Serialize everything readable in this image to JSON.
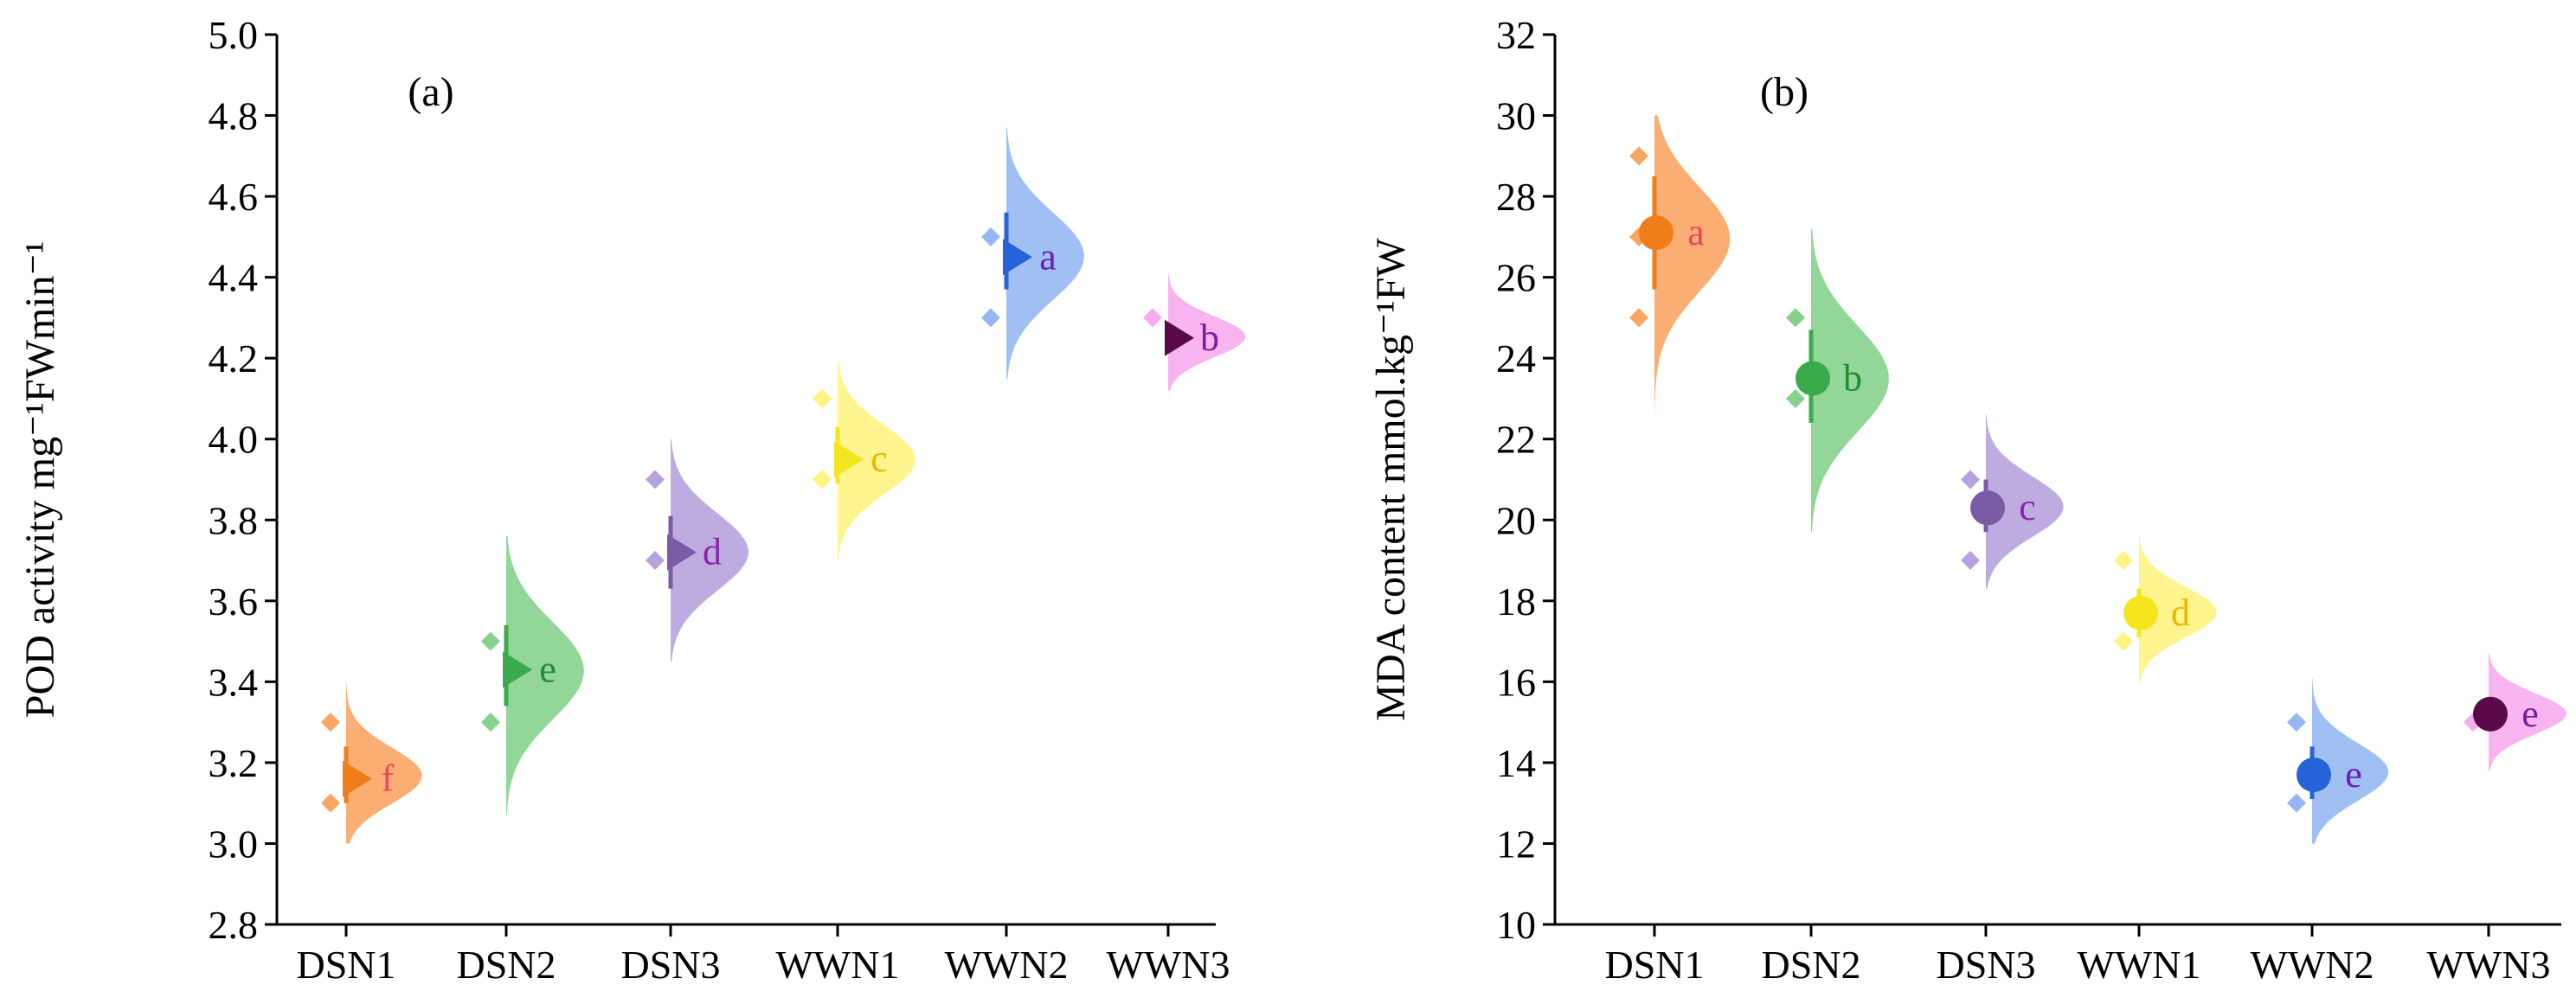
{
  "chart_data": [
    {
      "type": "violin",
      "panel_label": "(a)",
      "ylabel": "POD activity mg⁻¹FWmin⁻¹",
      "xlabel": "",
      "ylim": [
        2.8,
        5.0
      ],
      "yticks": [
        2.8,
        3.0,
        3.2,
        3.4,
        3.6,
        3.8,
        4.0,
        4.2,
        4.4,
        4.6,
        4.8,
        5.0
      ],
      "ytick_labels": [
        "2.8",
        "3.0",
        "3.2",
        "3.4",
        "3.6",
        "3.8",
        "4.0",
        "4.2",
        "4.4",
        "4.6",
        "4.8",
        "5.0"
      ],
      "marker": "triangle-right",
      "categories": [
        "DSN1",
        "DSN2",
        "DSN3",
        "WWN1",
        "WWN2",
        "WWN3"
      ],
      "series": [
        {
          "name": "DSN1",
          "mean": 3.16,
          "error": [
            3.1,
            3.24
          ],
          "observations": [
            3.1,
            3.3
          ],
          "range": [
            3.0,
            3.4
          ],
          "letter": "f",
          "fill": "#f9a05c",
          "marker_color": "#f07c1a",
          "letter_color": "#e8485a"
        },
        {
          "name": "DSN2",
          "mean": 3.43,
          "error": [
            3.34,
            3.54
          ],
          "observations": [
            3.3,
            3.5
          ],
          "range": [
            3.07,
            3.76
          ],
          "letter": "e",
          "fill": "#7fcf86",
          "marker_color": "#3aab4a",
          "letter_color": "#1e8f2e"
        },
        {
          "name": "DSN3",
          "mean": 3.72,
          "error": [
            3.63,
            3.81
          ],
          "observations": [
            3.7,
            3.9
          ],
          "range": [
            3.45,
            4.0
          ],
          "letter": "d",
          "fill": "#b39ddb",
          "marker_color": "#7b5aa6",
          "letter_color": "#8e24aa"
        },
        {
          "name": "WWN1",
          "mean": 3.95,
          "error": [
            3.89,
            4.03
          ],
          "observations": [
            3.9,
            4.1
          ],
          "range": [
            3.7,
            4.19
          ],
          "letter": "c",
          "fill": "#fff27a",
          "marker_color": "#f5e51c",
          "letter_color": "#e8b800"
        },
        {
          "name": "WWN2",
          "mean": 4.45,
          "error": [
            4.37,
            4.56
          ],
          "observations": [
            4.3,
            4.5
          ],
          "range": [
            4.15,
            4.77
          ],
          "letter": "a",
          "fill": "#8fb4f0",
          "marker_color": "#2563d9",
          "letter_color": "#6a1fb8"
        },
        {
          "name": "WWN3",
          "mean": 4.25,
          "error": [
            4.22,
            4.28
          ],
          "observations": [
            4.3
          ],
          "range": [
            4.12,
            4.41
          ],
          "letter": "b",
          "fill": "#f7a6ef",
          "marker_color": "#5a0a4a",
          "letter_color": "#7a1f9e"
        }
      ]
    },
    {
      "type": "violin",
      "panel_label": "(b)",
      "ylabel": "MDA content mmol.kg⁻¹FW",
      "xlabel": "",
      "ylim": [
        10,
        32
      ],
      "yticks": [
        10,
        12,
        14,
        16,
        18,
        20,
        22,
        24,
        26,
        28,
        30,
        32
      ],
      "ytick_labels": [
        "10",
        "12",
        "14",
        "16",
        "18",
        "20",
        "22",
        "24",
        "26",
        "28",
        "30",
        "32"
      ],
      "marker": "circle",
      "categories": [
        "DSN1",
        "DSN2",
        "DSN3",
        "WWN1",
        "WWN2",
        "WWN3"
      ],
      "series": [
        {
          "name": "DSN1",
          "mean": 27.1,
          "error": [
            25.7,
            28.5
          ],
          "observations": [
            25.0,
            27.0,
            29.0
          ],
          "range": [
            22.6,
            30.0
          ],
          "letter": "a",
          "fill": "#f9a05c",
          "marker_color": "#f07c1a",
          "letter_color": "#e8485a"
        },
        {
          "name": "DSN2",
          "mean": 23.5,
          "error": [
            22.4,
            24.7
          ],
          "observations": [
            23.0,
            25.0
          ],
          "range": [
            19.7,
            27.2
          ],
          "letter": "b",
          "fill": "#7fcf86",
          "marker_color": "#3aab4a",
          "letter_color": "#1e8f2e"
        },
        {
          "name": "DSN3",
          "mean": 20.3,
          "error": [
            19.7,
            21.0
          ],
          "observations": [
            19.0,
            21.0
          ],
          "range": [
            18.3,
            22.6
          ],
          "letter": "c",
          "fill": "#b39ddb",
          "marker_color": "#7b5aa6",
          "letter_color": "#8e24aa"
        },
        {
          "name": "WWN1",
          "mean": 17.7,
          "error": [
            17.1,
            18.3
          ],
          "observations": [
            17.0,
            19.0
          ],
          "range": [
            16.0,
            19.6
          ],
          "letter": "d",
          "fill": "#fff27a",
          "marker_color": "#f5e51c",
          "letter_color": "#e8b800"
        },
        {
          "name": "WWN2",
          "mean": 13.7,
          "error": [
            13.1,
            14.4
          ],
          "observations": [
            13.0,
            15.0
          ],
          "range": [
            12.0,
            16.1
          ],
          "letter": "e",
          "fill": "#8fb4f0",
          "marker_color": "#2563d9",
          "letter_color": "#6a1fb8"
        },
        {
          "name": "WWN3",
          "mean": 15.2,
          "error": [
            15.0,
            15.4
          ],
          "observations": [
            15.0
          ],
          "range": [
            13.8,
            16.7
          ],
          "letter": "e",
          "fill": "#f7a6ef",
          "marker_color": "#5a0a4a",
          "letter_color": "#7a1f9e"
        }
      ]
    }
  ]
}
